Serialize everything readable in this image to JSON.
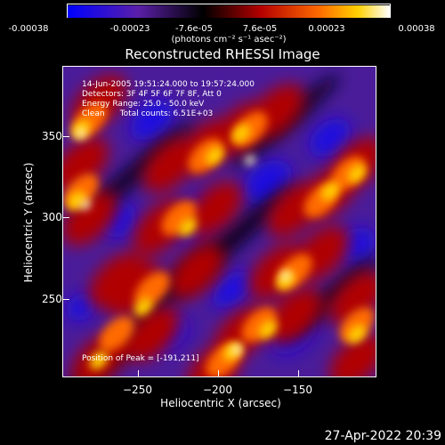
{
  "colorbar": {
    "ticks": [
      "-0.00038",
      "-0.00023",
      "-7.6e-05",
      "7.6e-05",
      "0.00023",
      "0.00038"
    ],
    "unit": "(photons cm⁻² s⁻¹ asec⁻²)"
  },
  "chart_data": {
    "type": "heatmap",
    "title": "Reconstructed RHESSI Image",
    "xlabel": "Heliocentric X (arcsec)",
    "ylabel": "Heliocentric Y (arcsec)",
    "xlim": [
      -293,
      -107
    ],
    "ylim": [
      200,
      385
    ],
    "xticks": [
      -250,
      -200,
      -150
    ],
    "yticks": [
      250,
      300,
      350
    ],
    "xtick_labels": [
      "−250",
      "−200",
      "−150"
    ],
    "ytick_labels": [
      "250",
      "300",
      "350"
    ],
    "color_range": [
      -0.00038,
      0.00038
    ],
    "colormap": [
      "#0000ff",
      "#5a1fa8",
      "#000000",
      "#b40000",
      "#ff6a00",
      "#ffd000",
      "#ffffff"
    ],
    "annotations": [
      "14-Jun-2005 19:51:24.000 to 19:57:24.000",
      "Detectors: 3F 4F 5F 6F 7F 8F, Att 0",
      "Energy Range: 25.0 - 50.0 keV",
      "Clean      Total counts: 6.51E+03",
      "Position of Peak = [-191,211]"
    ]
  },
  "timestamp": "27-Apr-2022 20:39"
}
